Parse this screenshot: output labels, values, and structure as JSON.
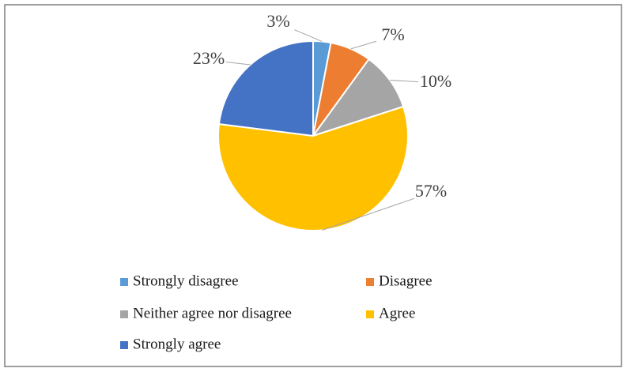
{
  "chart_data": {
    "type": "pie",
    "categories": [
      "Strongly disagree",
      "Disagree",
      "Neither agree nor disagree",
      "Agree",
      "Strongly agree"
    ],
    "values": [
      3,
      7,
      10,
      57,
      23
    ],
    "value_labels": [
      "3%",
      "7%",
      "10%",
      "57%",
      "23%"
    ],
    "colors": [
      "#5B9BD5",
      "#ED7D31",
      "#A5A5A5",
      "#FFC000",
      "#4472C4"
    ]
  }
}
